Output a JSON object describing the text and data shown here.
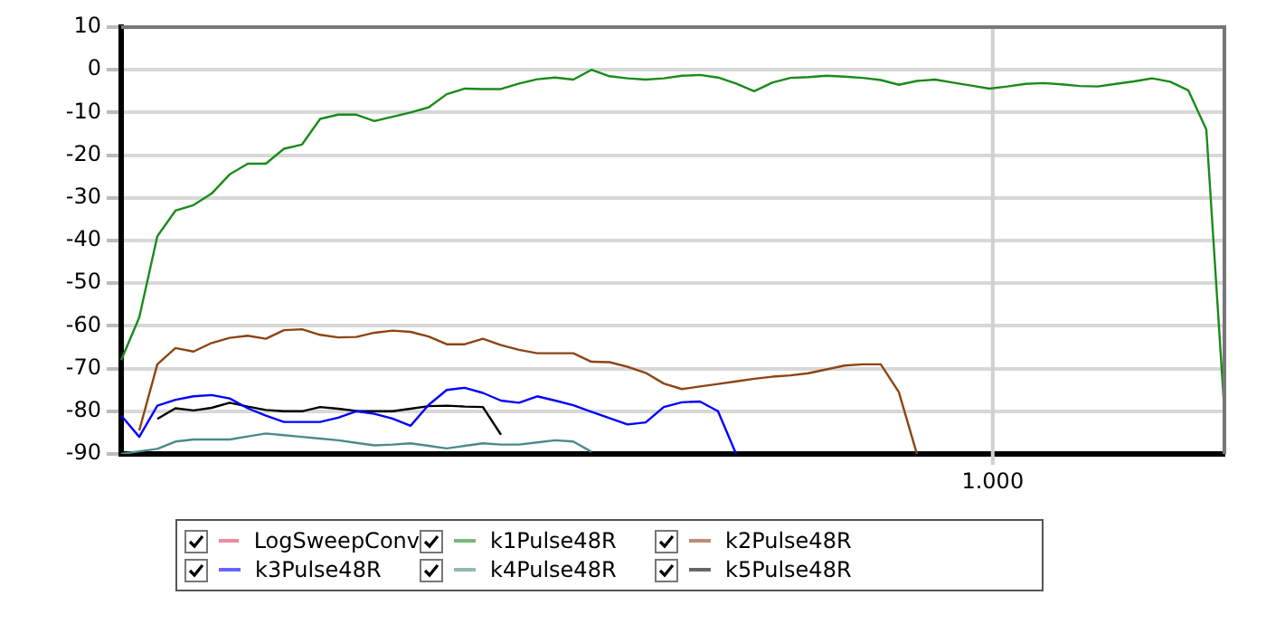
{
  "chart_data": {
    "type": "line",
    "grid": "y",
    "legend": "bottom",
    "marker": "none",
    "line_style": "solid",
    "tick_labels": "y",
    "annotations": [
      "1.000"
    ],
    "categories": [
      null,
      null,
      null,
      null,
      null,
      null,
      null,
      null,
      null,
      null,
      null,
      null,
      null,
      null,
      null,
      null,
      null,
      null,
      null,
      null,
      null,
      null,
      null,
      null,
      null,
      null,
      null,
      null,
      null,
      null,
      null,
      null,
      null,
      null,
      null,
      null,
      null,
      null,
      null,
      null,
      null,
      null,
      null,
      null,
      null,
      null,
      null,
      null,
      null,
      null,
      null,
      null,
      null,
      null,
      null,
      null,
      null,
      null,
      null,
      null,
      null,
      null
    ],
    "ylim": [
      -90,
      10
    ],
    "yticks": [
      -90,
      -80,
      -70,
      -60,
      -50,
      -40,
      -30,
      -20,
      -10,
      0,
      10
    ],
    "series": [
      {
        "name": "LogSweepConv",
        "color": "#e0405a",
        "values": [
          null,
          null,
          null,
          null,
          null,
          null,
          null,
          null,
          null,
          null,
          null,
          null,
          null,
          null,
          null,
          null,
          null,
          null,
          null,
          null,
          null,
          null,
          null,
          null,
          null,
          null,
          null,
          null,
          null,
          null,
          null,
          null,
          null,
          null,
          null,
          null,
          null,
          null,
          null,
          null,
          null,
          null,
          null,
          null,
          null,
          null,
          null,
          null,
          null,
          null,
          null,
          null,
          null,
          null,
          null,
          null,
          null,
          null,
          null,
          null,
          null,
          null
        ]
      },
      {
        "name": "k1Pulse48R",
        "color": "#1a8a1a",
        "values": [
          -68,
          -58,
          -39,
          -33,
          -31.7,
          -29,
          -24.5,
          -22,
          -22,
          -18.5,
          -17.5,
          -11.5,
          -10.5,
          -10.5,
          -12,
          -11,
          -10,
          -8.8,
          -5.7,
          -4.4,
          -4.5,
          -4.5,
          -3.2,
          -2.2,
          -1.8,
          -2.3,
          0,
          -1.5,
          -2,
          -2.3,
          -2,
          -1.4,
          -1.2,
          -1.8,
          -3.2,
          -5,
          -3,
          -1.9,
          -1.7,
          -1.4,
          -1.6,
          -1.9,
          -2.4,
          -3.5,
          -2.6,
          -2.3,
          -3,
          -3.7,
          -4.4,
          -3.9,
          -3.3,
          -3.1,
          -3.4,
          -3.8,
          -3.9,
          -3.3,
          -2.7,
          -2,
          -2.8,
          -4.8,
          -14,
          -80
        ]
      },
      {
        "name": "k2Pulse48R",
        "color": "#8b4513",
        "values": [
          null,
          -84.5,
          -69,
          -65.2,
          -66,
          -64,
          -62.8,
          -62.3,
          -63,
          -61,
          -60.8,
          -62.1,
          -62.7,
          -62.6,
          -61.6,
          -61.1,
          -61.4,
          -62.5,
          -64.3,
          -64.3,
          -63,
          -64.5,
          -65.6,
          -66.4,
          -66.4,
          -66.4,
          -68.4,
          -68.5,
          -69.6,
          -71,
          -73.5,
          -74.8,
          -74.2,
          -73.6,
          -73,
          -72.4,
          -71.9,
          -71.6,
          -71.1,
          -70.2,
          -69.3,
          -69,
          -69,
          -75.5,
          -90,
          null,
          null,
          null,
          null,
          null,
          null,
          null,
          null,
          null,
          null,
          null,
          null,
          null,
          null,
          null,
          null,
          null
        ]
      },
      {
        "name": "k3Pulse48R",
        "color": "#0000ff",
        "values": [
          -81,
          -86,
          -78.7,
          -77.3,
          -76.5,
          -76.2,
          -77,
          -79.3,
          -81,
          -82.5,
          -82.5,
          -82.5,
          -81.5,
          -80,
          -80.6,
          -81.7,
          -83.4,
          -78.5,
          -75,
          -74.5,
          -75.7,
          -77.5,
          -78,
          -76.5,
          -77.5,
          -78.6,
          -80.1,
          -81.6,
          -83.1,
          -82.6,
          -79,
          -77.9,
          -77.7,
          -80,
          -90,
          null,
          null,
          null,
          null,
          null,
          null,
          null,
          null,
          null,
          null,
          null,
          null,
          null,
          null,
          null,
          null,
          null,
          null,
          null,
          null,
          null,
          null,
          null,
          null,
          null,
          null,
          null
        ]
      },
      {
        "name": "k4Pulse48R",
        "color": "#4a8a8a",
        "values": [
          -90,
          -89.4,
          -88.8,
          -87.1,
          -86.6,
          -86.6,
          -86.6,
          -85.9,
          -85.2,
          -85.6,
          -86,
          -86.4,
          -86.8,
          -87.4,
          -88,
          -87.8,
          -87.5,
          -88.1,
          -88.7,
          -88.1,
          -87.5,
          -87.8,
          -87.8,
          -87.3,
          -86.8,
          -87.1,
          -89.5,
          null,
          null,
          null,
          null,
          null,
          null,
          null,
          null,
          null,
          null,
          null,
          null,
          null,
          null,
          null,
          null,
          null,
          null,
          null,
          null,
          null,
          null,
          null,
          null,
          null,
          null,
          null,
          null,
          null,
          null,
          null,
          null,
          null,
          null,
          null
        ]
      },
      {
        "name": "k5Pulse48R",
        "color": "#000000",
        "values": [
          null,
          null,
          -81.8,
          -79.3,
          -79.8,
          -79.2,
          -78,
          -78.9,
          -79.7,
          -80,
          -80,
          -79,
          -79.4,
          -79.9,
          -80,
          -80,
          -79.4,
          -78.8,
          -78.7,
          -78.9,
          -79,
          -85.5,
          null,
          null,
          null,
          null,
          null,
          null,
          null,
          null,
          null,
          null,
          null,
          null,
          null,
          null,
          null,
          null,
          null,
          null,
          null,
          null,
          null,
          null,
          null,
          null,
          null,
          null,
          null,
          null,
          null,
          null,
          null,
          null,
          null,
          null,
          null,
          null,
          null,
          null,
          null,
          null
        ]
      }
    ]
  }
}
